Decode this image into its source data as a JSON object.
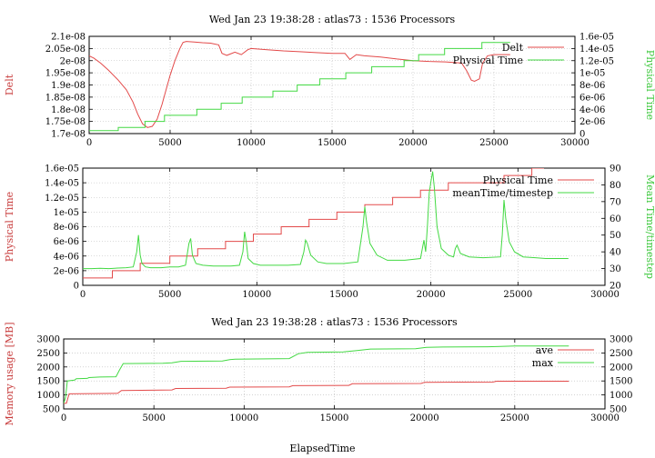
{
  "chart_data": [
    {
      "type": "line",
      "title": "Wed Jan 23 19:38:28 : atlas73 : 1536 Processors",
      "xlabel": "",
      "ylabel": "Delt",
      "y2label": "Physical Time",
      "xlim": [
        0,
        30000
      ],
      "ylim": [
        1.7e-08,
        2.1e-08
      ],
      "y2lim": [
        0,
        1.6e-05
      ],
      "x_ticks": [
        "0",
        "5000",
        "10000",
        "15000",
        "20000",
        "25000",
        "30000"
      ],
      "y_ticks": [
        "1.7e-08",
        "1.75e-08",
        "1.8e-08",
        "1.85e-08",
        "1.9e-08",
        "1.95e-08",
        "2e-08",
        "2.05e-08",
        "2.1e-08"
      ],
      "y2_ticks": [
        "0",
        "2e-06",
        "4e-06",
        "6e-06",
        "8e-06",
        "1e-05",
        "1.2e-05",
        "1.4e-05",
        "1.6e-05"
      ],
      "grid": true,
      "legend": "top-right",
      "series": [
        {
          "name": "Delt",
          "axis": "left",
          "color": "#e34a4a",
          "x": [
            0,
            300,
            700,
            1200,
            1800,
            2300,
            2700,
            3000,
            3300,
            3600,
            3900,
            4200,
            4500,
            5000,
            5300,
            5600,
            5800,
            6000,
            6500,
            7000,
            7500,
            8000,
            8200,
            8500,
            9000,
            9400,
            9800,
            10000,
            11000,
            12000,
            13000,
            14000,
            15000,
            15800,
            16100,
            16500,
            17000,
            18000,
            19000,
            20000,
            21000,
            22000,
            23000,
            23300,
            23600,
            23800,
            24100,
            24300,
            24600,
            25000,
            25500,
            26000
          ],
          "y": [
            2.02e-08,
            2.01e-08,
            1.99e-08,
            1.96e-08,
            1.92e-08,
            1.88e-08,
            1.83e-08,
            1.78e-08,
            1.74e-08,
            1.725e-08,
            1.73e-08,
            1.76e-08,
            1.82e-08,
            1.94e-08,
            2e-08,
            2.05e-08,
            2.075e-08,
            2.079e-08,
            2.077e-08,
            2.074e-08,
            2.072e-08,
            2.065e-08,
            2.03e-08,
            2.022e-08,
            2.035e-08,
            2.025e-08,
            2.045e-08,
            2.05e-08,
            2.045e-08,
            2.04e-08,
            2.037e-08,
            2.033e-08,
            2.03e-08,
            2.03e-08,
            2.005e-08,
            2.025e-08,
            2.02e-08,
            2.015e-08,
            2.007e-08,
            2e-08,
            1.997e-08,
            1.995e-08,
            1.99e-08,
            1.96e-08,
            1.92e-08,
            1.915e-08,
            1.925e-08,
            1.99e-08,
            2.02e-08,
            2.025e-08,
            2.025e-08,
            2.025e-08
          ]
        },
        {
          "name": "Physical Time",
          "axis": "right",
          "step": true,
          "color": "#43d943",
          "x": [
            0,
            1800,
            3450,
            4650,
            6650,
            8150,
            9450,
            11350,
            12850,
            14250,
            15850,
            17450,
            19450,
            20350,
            21950,
            23850,
            24250,
            26000
          ],
          "y": [
            5e-07,
            1e-06,
            2e-06,
            3e-06,
            4e-06,
            5e-06,
            6e-06,
            7e-06,
            8e-06,
            9e-06,
            1e-05,
            1.1e-05,
            1.2e-05,
            1.3e-05,
            1.4e-05,
            1.4e-05,
            1.5e-05,
            1.5e-05
          ]
        }
      ]
    },
    {
      "type": "line",
      "title": "",
      "xlabel": "",
      "ylabel": "Physical Time",
      "y2label": "Mean Time/timestep",
      "xlim": [
        0,
        30000
      ],
      "ylim": [
        0,
        1.6e-05
      ],
      "y2lim": [
        20,
        90
      ],
      "x_ticks": [
        "0",
        "5000",
        "10000",
        "15000",
        "20000",
        "25000",
        "30000"
      ],
      "y_ticks": [
        "0",
        "2e-06",
        "4e-06",
        "6e-06",
        "8e-06",
        "1e-05",
        "1.2e-05",
        "1.4e-05",
        "1.6e-05"
      ],
      "y2_ticks": [
        "20",
        "30",
        "40",
        "50",
        "60",
        "70",
        "80",
        "90"
      ],
      "grid": true,
      "legend": "top-right",
      "series": [
        {
          "name": "Physical Time",
          "axis": "left",
          "step": true,
          "color": "#e34a4a",
          "x": [
            0,
            1700,
            3300,
            5000,
            6600,
            8200,
            9800,
            11400,
            13000,
            14600,
            16200,
            17800,
            19400,
            21000,
            22600,
            24200,
            25800,
            26500
          ],
          "y": [
            1e-06,
            2e-06,
            3e-06,
            4e-06,
            5e-06,
            6e-06,
            7e-06,
            8e-06,
            9e-06,
            1e-05,
            1.1e-05,
            1.2e-05,
            1.3e-05,
            1.4e-05,
            1.4e-05,
            1.5e-05,
            1.6e-05,
            1.6e-05
          ]
        },
        {
          "name": "meanTime/timestep",
          "axis": "right",
          "color": "#43d943",
          "x": [
            0,
            500,
            1000,
            1500,
            2000,
            2500,
            2900,
            3100,
            3200,
            3300,
            3400,
            3600,
            3900,
            4500,
            5000,
            5500,
            5900,
            6100,
            6200,
            6300,
            6500,
            6900,
            7500,
            8000,
            8500,
            9000,
            9200,
            9300,
            9400,
            9500,
            9800,
            10200,
            11000,
            11800,
            12500,
            12700,
            12800,
            12900,
            13100,
            13500,
            14000,
            15000,
            15800,
            16100,
            16200,
            16300,
            16500,
            16900,
            17500,
            18500,
            19400,
            19600,
            19700,
            19800,
            19900,
            20000,
            20100,
            20200,
            20350,
            20600,
            21000,
            21300,
            21400,
            21500,
            21700,
            22200,
            23000,
            24000,
            24100,
            24200,
            24300,
            24500,
            24800,
            25300,
            26000,
            26600,
            27000,
            27500,
            27900
          ],
          "y": [
            30,
            30,
            30.2,
            30,
            30.3,
            30.5,
            31,
            40,
            50,
            38,
            33,
            31,
            30.5,
            30.5,
            31,
            31,
            32,
            45,
            48,
            38,
            33,
            32,
            31.5,
            31.5,
            31.5,
            32,
            40,
            52,
            45,
            36,
            33,
            32,
            32,
            32,
            32.5,
            40,
            47,
            45,
            38,
            34,
            33,
            33,
            34,
            55,
            67,
            58,
            45,
            38,
            35,
            35,
            36,
            47,
            40,
            55,
            75,
            82,
            88,
            78,
            55,
            42,
            38,
            37,
            42,
            44,
            39,
            37,
            36.5,
            37,
            50,
            71,
            60,
            46,
            40,
            37,
            36.5,
            36,
            36,
            36,
            36
          ]
        }
      ]
    },
    {
      "type": "line",
      "title": "Wed Jan 23 19:38:28 : atlas73 : 1536 Processors",
      "xlabel": "ElapsedTime",
      "ylabel": "Memory usage [MB]",
      "y2label": "",
      "xlim": [
        0,
        30000
      ],
      "ylim": [
        500,
        3000
      ],
      "y2lim": [
        500,
        3000
      ],
      "x_ticks": [
        "0",
        "5000",
        "10000",
        "15000",
        "20000",
        "25000",
        "30000"
      ],
      "y_ticks": [
        "500",
        "1000",
        "1500",
        "2000",
        "2500",
        "3000"
      ],
      "y2_ticks": [
        "500",
        "1000",
        "1500",
        "2000",
        "2500",
        "3000"
      ],
      "grid": true,
      "legend": "top-right",
      "series": [
        {
          "name": "ave",
          "axis": "left",
          "color": "#e34a4a",
          "x": [
            0,
            150,
            300,
            3000,
            3200,
            6000,
            6200,
            9000,
            9200,
            12500,
            12700,
            15800,
            16000,
            19800,
            20000,
            23800,
            24000,
            28000
          ],
          "y": [
            700,
            700,
            1040,
            1060,
            1160,
            1180,
            1230,
            1240,
            1280,
            1290,
            1330,
            1340,
            1400,
            1410,
            1450,
            1460,
            1490,
            1490
          ]
        },
        {
          "name": "max",
          "axis": "left",
          "color": "#43d943",
          "x": [
            0,
            100,
            200,
            600,
            700,
            1300,
            1400,
            2000,
            2900,
            3100,
            3300,
            5500,
            6000,
            6500,
            8800,
            9200,
            9500,
            12500,
            13000,
            13500,
            15500,
            16200,
            17000,
            19500,
            20100,
            21000,
            23500,
            24200,
            25000,
            28000
          ],
          "y": [
            700,
            900,
            1500,
            1530,
            1580,
            1590,
            1620,
            1640,
            1650,
            1900,
            2120,
            2130,
            2150,
            2200,
            2210,
            2260,
            2280,
            2300,
            2470,
            2520,
            2540,
            2580,
            2640,
            2650,
            2700,
            2710,
            2720,
            2730,
            2750,
            2750
          ]
        }
      ]
    }
  ]
}
